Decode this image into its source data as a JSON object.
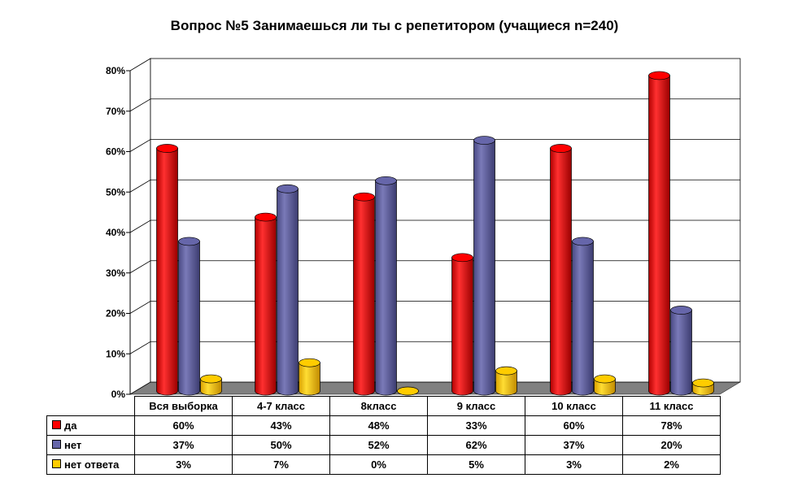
{
  "chart_data": {
    "type": "bar",
    "title": "Вопрос №5 Занимаешься ли ты с репетитором (учащиеся n=240)",
    "categories": [
      "Вся выборка",
      "4-7 класс",
      "8класс",
      "9 класс",
      "10 класс",
      "11 класс"
    ],
    "series": [
      {
        "name": "да",
        "color": "#ff0000",
        "values": [
          60,
          43,
          48,
          33,
          60,
          78
        ],
        "labels": [
          "60%",
          "43%",
          "48%",
          "33%",
          "60%",
          "78%"
        ]
      },
      {
        "name": "нет",
        "color": "#6666aa",
        "values": [
          37,
          50,
          52,
          62,
          37,
          20
        ],
        "labels": [
          "37%",
          "50%",
          "52%",
          "62%",
          "37%",
          "20%"
        ]
      },
      {
        "name": "нет ответа",
        "color": "#ffcc00",
        "values": [
          3,
          7,
          0,
          5,
          3,
          2
        ],
        "labels": [
          "3%",
          "7%",
          "0%",
          "5%",
          "3%",
          "2%"
        ]
      }
    ],
    "ylim": [
      0,
      80
    ],
    "yticks": [
      "0%",
      "10%",
      "20%",
      "30%",
      "40%",
      "50%",
      "60%",
      "70%",
      "80%"
    ],
    "grid": true,
    "legend": "data-table-below"
  }
}
